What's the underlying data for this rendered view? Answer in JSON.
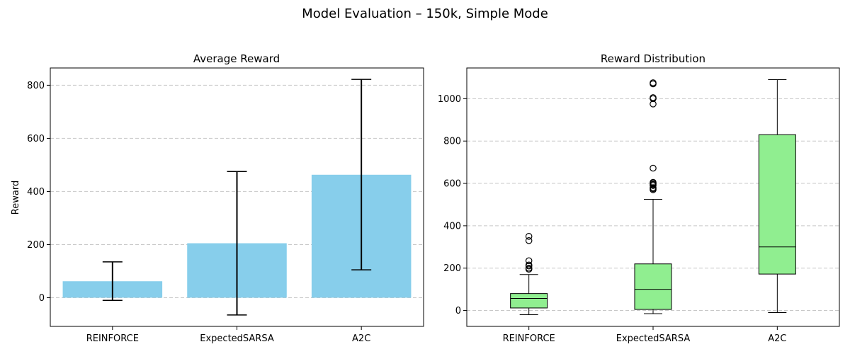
{
  "figure": {
    "title": "Model Evaluation – 150k, Simple Mode"
  },
  "chart_data": [
    {
      "type": "bar",
      "title": "Average Reward",
      "xlabel": "",
      "ylabel": "Reward",
      "categories": [
        "REINFORCE",
        "ExpectedSARSA",
        "A2C"
      ],
      "values": [
        62,
        205,
        463
      ],
      "error_low": [
        -10,
        -65,
        105
      ],
      "error_high": [
        135,
        475,
        822
      ],
      "ylim": [
        -108,
        865
      ],
      "yticks": [
        0,
        200,
        400,
        600,
        800
      ],
      "grid": "y-dashed",
      "bar_color": "#87ceeb"
    },
    {
      "type": "box",
      "title": "Reward Distribution",
      "xlabel": "",
      "ylabel": "",
      "categories": [
        "REINFORCE",
        "ExpectedSARSA",
        "A2C"
      ],
      "boxes": [
        {
          "whisker_low": -20,
          "q1": 12,
          "median": 57,
          "q3": 80,
          "whisker_high": 170,
          "outliers": [
            195,
            200,
            210,
            215,
            235,
            330,
            350
          ]
        },
        {
          "whisker_low": -15,
          "q1": 5,
          "median": 100,
          "q3": 220,
          "whisker_high": 525,
          "outliers": [
            570,
            575,
            580,
            590,
            595,
            600,
            605,
            672,
            975,
            1000,
            1005,
            1070,
            1075
          ]
        },
        {
          "whisker_low": -10,
          "q1": 172,
          "median": 300,
          "q3": 830,
          "whisker_high": 1090,
          "outliers": []
        }
      ],
      "ylim": [
        -75,
        1145
      ],
      "yticks": [
        0,
        200,
        400,
        600,
        800,
        1000
      ],
      "grid": "y-dashed",
      "box_color": "#90ee90"
    }
  ]
}
